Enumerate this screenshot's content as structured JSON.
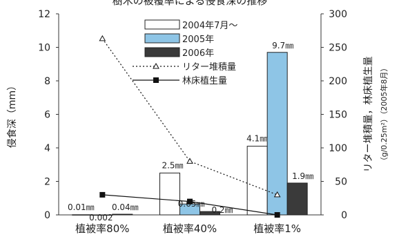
{
  "chart_data": {
    "type": "bar",
    "title": "樹木の被覆率による侵食深の推移",
    "categories": [
      "植被率80%",
      "植被率40%",
      "植被率1%"
    ],
    "ylabel_left": "侵食深（mm）",
    "ylabel_right": "リター堆積量，林床植生量",
    "ylabel_right_unit": "（g/0.25m²）（2005年8月）",
    "ylim_left": [
      0,
      12
    ],
    "ylim_right": [
      0,
      300
    ],
    "yticks_left": [
      "0",
      "2",
      "4",
      "6",
      "8",
      "10",
      "12"
    ],
    "yticks_right": [
      "0",
      "50",
      "100",
      "150",
      "200",
      "250",
      "300"
    ],
    "grid": false,
    "legend_position": "top-center",
    "series": [
      {
        "name": "2004年7月～",
        "kind": "bar",
        "axis": "left",
        "color": "#ffffff",
        "values": [
          0.01,
          2.5,
          4.1
        ],
        "labels": [
          "0.01㎜",
          "2.5㎜",
          "4.1㎜"
        ]
      },
      {
        "name": "2005年",
        "kind": "bar",
        "axis": "left",
        "color": "#8ec5e6",
        "values": [
          0.002,
          0.65,
          9.7
        ],
        "labels": [
          "0.002",
          "0.65㎜",
          "9.7㎜"
        ]
      },
      {
        "name": "2006年",
        "kind": "bar",
        "axis": "left",
        "color": "#3a3a3a",
        "values": [
          0.04,
          0.2,
          1.9
        ],
        "labels": [
          "0.04㎜",
          "0.2㎜",
          "1.9㎜"
        ]
      },
      {
        "name": "リター堆積量",
        "kind": "line",
        "axis": "right",
        "style": "dotted",
        "marker": "open-triangle",
        "values": [
          263,
          80,
          30
        ]
      },
      {
        "name": "林床植生量",
        "kind": "line",
        "axis": "right",
        "style": "solid",
        "marker": "filled-square",
        "values": [
          30,
          20,
          0
        ]
      }
    ]
  }
}
